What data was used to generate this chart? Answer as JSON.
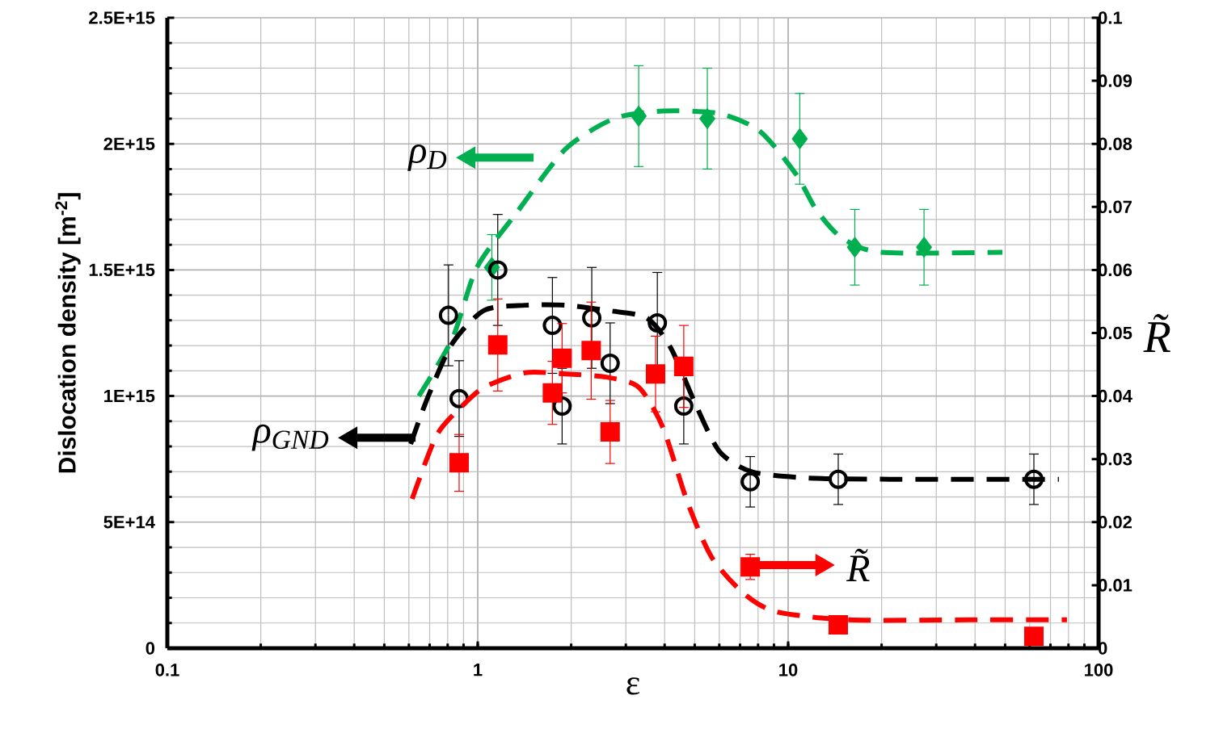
{
  "chart_data": {
    "type": "scatter",
    "xlabel": "ε",
    "ylabel": "Dislocation density [m$^{-2}$]",
    "y2label": "R̃",
    "log": "x",
    "grid": true,
    "xlim": [
      0.1,
      100
    ],
    "xticks": [
      0.1,
      1,
      10,
      100
    ],
    "ylim": [
      0,
      2500000000000000.0
    ],
    "yticks": [
      0,
      {
        "value": 500000000000000.0,
        "label": "5E+14"
      },
      {
        "value": 1000000000000000.0,
        "label": "1E+15"
      },
      {
        "value": 1500000000000000.0,
        "label": "1.5E+15"
      },
      {
        "value": 2000000000000000.0,
        "label": "2E+15"
      },
      {
        "value": 2500000000000000.0,
        "label": "2.5E+15"
      }
    ],
    "y2lim": [
      0,
      0.1
    ],
    "y2ticks": [
      0,
      0.01,
      0.02,
      0.03,
      0.04,
      0.05,
      0.06,
      0.07,
      0.08,
      0.09,
      0.1
    ],
    "annotations": [
      "ρ$_{D}$",
      "ρ$_{GND}$",
      "R̃"
    ],
    "series": [
      {
        "color": "#00b050",
        "marker": "diamond",
        "x": [
          1.11,
          3.3,
          5.49,
          10.9,
          16.4,
          27.4
        ],
        "values": [
          1510000000000000.0,
          2110000000000000.0,
          2100000000000000.0,
          2020000000000000.0,
          1590000000000000.0,
          1590000000000000.0
        ],
        "errors": [
          130000000000000.0,
          200000000000000.0,
          200000000000000.0,
          180000000000000.0,
          150000000000000.0,
          150000000000000.0
        ]
      },
      {
        "color": "#000000",
        "marker": "circle",
        "x": [
          0.805,
          0.871,
          1.16,
          1.74,
          1.87,
          2.33,
          2.67,
          3.79,
          4.61,
          7.55,
          14.5,
          61.9
        ],
        "values": [
          1320000000000000.0,
          990000000000000.0,
          1500000000000000.0,
          1280000000000000.0,
          960000000000000.0,
          1310000000000000.0,
          1130000000000000.0,
          1290000000000000.0,
          960000000000000.0,
          660000000000000.0,
          670000000000000.0,
          670000000000000.0
        ],
        "errors": [
          200000000000000.0,
          150000000000000.0,
          220000000000000.0,
          190000000000000.0,
          150000000000000.0,
          200000000000000.0,
          160000000000000.0,
          200000000000000.0,
          150000000000000.0,
          100000000000000.0,
          100000000000000.0,
          100000000000000.0
        ]
      },
      {
        "color": "#ff0000",
        "marker": "square",
        "axis": "y2",
        "x": [
          0.871,
          1.16,
          1.74,
          1.87,
          2.32,
          2.67,
          3.74,
          4.61,
          7.55,
          14.5,
          61.9
        ],
        "values": [
          0.0294,
          0.0481,
          0.0405,
          0.046,
          0.0472,
          0.0343,
          0.0435,
          0.0447,
          0.0129,
          0.0037,
          0.0019
        ],
        "errors": [
          0.0045,
          0.0073,
          0.005,
          0.0055,
          0.0077,
          0.005,
          0.006,
          0.0065,
          0.002,
          null,
          null
        ]
      },
      {
        "type": "line",
        "color": "#00b050",
        "line_style": "dashed",
        "marker": "none",
        "x": [
          0.646,
          0.83,
          0.994,
          1.34,
          1.92,
          2.75,
          3.95,
          6.01,
          8.11,
          10.6,
          12.3,
          14.8,
          19.9,
          49.0
        ],
        "values": [
          1000000000000000.0,
          1230000000000000.0,
          1510000000000000.0,
          1730000000000000.0,
          1980000000000000.0,
          2100000000000000.0,
          2130000000000000.0,
          2120000000000000.0,
          2050000000000000.0,
          1880000000000000.0,
          1740000000000000.0,
          1630000000000000.0,
          1570000000000000.0,
          1570000000000000.0
        ]
      },
      {
        "type": "line",
        "color": "#000000",
        "line_style": "dashed",
        "marker": "none",
        "x": [
          0.608,
          0.693,
          0.83,
          1.05,
          1.42,
          1.92,
          2.59,
          3.5,
          4.19,
          5.02,
          6.01,
          7.63,
          11.6,
          21.2,
          74.5
        ],
        "values": [
          810000000000000.0,
          1000000000000000.0,
          1210000000000000.0,
          1340000000000000.0,
          1360000000000000.0,
          1360000000000000.0,
          1340000000000000.0,
          1310000000000000.0,
          1190000000000000.0,
          970000000000000.0,
          780000000000000.0,
          700000000000000.0,
          675000000000000.0,
          670000000000000.0,
          670000000000000.0
        ]
      },
      {
        "type": "line",
        "color": "#ff0000",
        "line_style": "dashed",
        "marker": "none",
        "axis": "y2",
        "x": [
          0.615,
          0.736,
          0.882,
          1.05,
          1.42,
          1.92,
          2.59,
          3.3,
          3.95,
          4.72,
          5.66,
          7.19,
          9.14,
          15.7,
          38.5,
          79.1
        ],
        "values": [
          0.0237,
          0.0337,
          0.0382,
          0.0414,
          0.0437,
          0.0435,
          0.043,
          0.0414,
          0.035,
          0.0234,
          0.0145,
          0.0087,
          0.0058,
          0.0045,
          0.0045,
          0.0045
        ]
      }
    ]
  }
}
